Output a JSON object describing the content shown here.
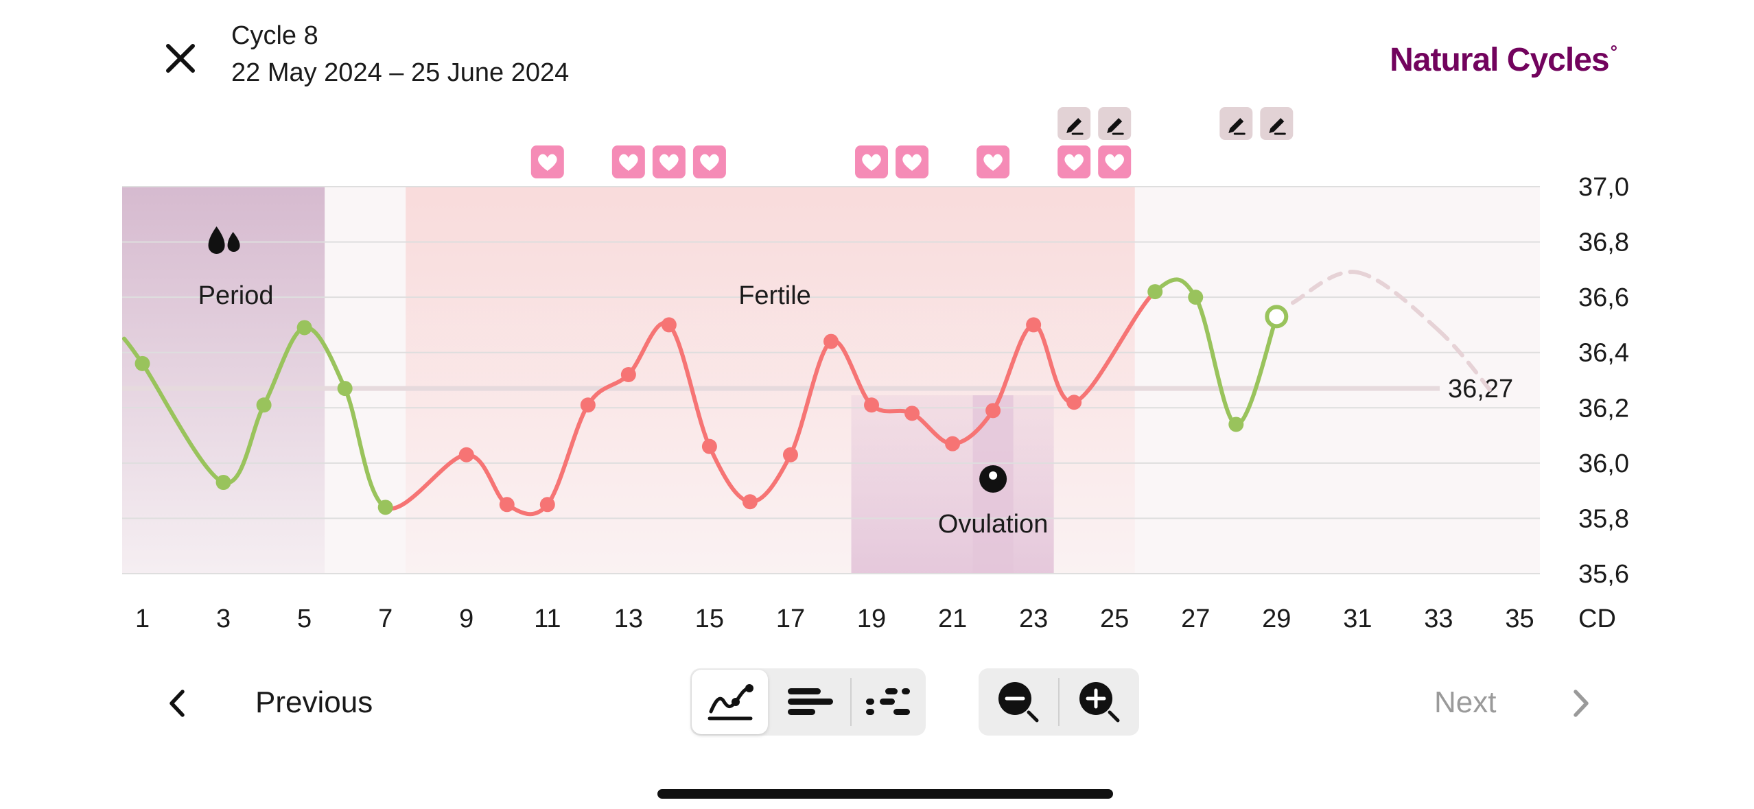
{
  "header": {
    "title": "Cycle 8",
    "dates": "22 May 2024 – 25 June 2024",
    "brand": "Natural Cycles",
    "brand_mark": "°"
  },
  "navigation": {
    "previous_label": "Previous",
    "next_label": "Next"
  },
  "toolbar": {
    "view_buttons": [
      "graph-view",
      "bar-view",
      "dots-view"
    ],
    "selected_view": "graph-view",
    "zoom_buttons": [
      "zoom-out",
      "zoom-in"
    ]
  },
  "chart_data": {
    "type": "line",
    "ylabel": "",
    "xlabel_unit": "CD",
    "ylim": [
      35.6,
      37.0
    ],
    "xlim": [
      0.5,
      35.5
    ],
    "y_ticks": [
      "35,6",
      "35,8",
      "36,0",
      "36,2",
      "36,4",
      "36,6",
      "36,8",
      "37,0"
    ],
    "x_ticks": [
      "1",
      "3",
      "5",
      "7",
      "9",
      "11",
      "13",
      "15",
      "17",
      "19",
      "21",
      "23",
      "25",
      "27",
      "29",
      "31",
      "33",
      "35"
    ],
    "cover_line": {
      "value": 36.27,
      "label": "36,27"
    },
    "series": [
      {
        "points": [
          {
            "cd": 1,
            "temp": 36.36,
            "phase": "green"
          },
          {
            "cd": 3,
            "temp": 35.93,
            "phase": "green"
          },
          {
            "cd": 4,
            "temp": 36.21,
            "phase": "green"
          },
          {
            "cd": 5,
            "temp": 36.49,
            "phase": "green"
          },
          {
            "cd": 6,
            "temp": 36.27,
            "phase": "green"
          },
          {
            "cd": 7,
            "temp": 35.84,
            "phase": "green"
          },
          {
            "cd": 9,
            "temp": 36.03,
            "phase": "red"
          },
          {
            "cd": 10,
            "temp": 35.85,
            "phase": "red"
          },
          {
            "cd": 11,
            "temp": 35.85,
            "phase": "red"
          },
          {
            "cd": 12,
            "temp": 36.21,
            "phase": "red"
          },
          {
            "cd": 13,
            "temp": 36.32,
            "phase": "red"
          },
          {
            "cd": 14,
            "temp": 36.5,
            "phase": "red"
          },
          {
            "cd": 15,
            "temp": 36.06,
            "phase": "red"
          },
          {
            "cd": 16,
            "temp": 35.86,
            "phase": "red"
          },
          {
            "cd": 17,
            "temp": 36.03,
            "phase": "red"
          },
          {
            "cd": 18,
            "temp": 36.44,
            "phase": "red"
          },
          {
            "cd": 19,
            "temp": 36.21,
            "phase": "red"
          },
          {
            "cd": 20,
            "temp": 36.18,
            "phase": "red"
          },
          {
            "cd": 21,
            "temp": 36.07,
            "phase": "red"
          },
          {
            "cd": 22,
            "temp": 36.19,
            "phase": "red"
          },
          {
            "cd": 23,
            "temp": 36.5,
            "phase": "red"
          },
          {
            "cd": 24,
            "temp": 36.22,
            "phase": "red"
          },
          {
            "cd": 26,
            "temp": 36.62,
            "phase": "green"
          },
          {
            "cd": 27,
            "temp": 36.6,
            "phase": "green"
          },
          {
            "cd": 28,
            "temp": 36.14,
            "phase": "green"
          },
          {
            "cd": 29,
            "temp": 36.53,
            "phase": "open"
          }
        ],
        "lead_in": {
          "cd": 0.55,
          "temp": 36.45
        },
        "prediction": [
          {
            "cd": 29.4,
            "temp": 36.58
          },
          {
            "cd": 31,
            "temp": 36.69
          },
          {
            "cd": 33,
            "temp": 36.48
          },
          {
            "cd": 34.4,
            "temp": 36.24
          }
        ]
      }
    ],
    "bands": [
      {
        "label": "Period",
        "from_cd": 0.5,
        "to_cd": 5.5,
        "kind": "period",
        "icon": "drops-icon"
      },
      {
        "label": "Fertile",
        "from_cd": 7.5,
        "to_cd": 25.5,
        "kind": "fertile"
      },
      {
        "label": "Ovulation",
        "from_cd": 18.5,
        "to_cd": 23.5,
        "kind": "ovulation",
        "icon": "ovulation-dot-icon"
      }
    ],
    "heart_markers": [
      11,
      13,
      14,
      15,
      19,
      20,
      22,
      24,
      25
    ],
    "test_markers": [
      24,
      25,
      28,
      29
    ],
    "colors": {
      "green": "#99c35c",
      "red": "#f67474",
      "period": "#d4b7cd",
      "fertile": "#f9dada",
      "ovulation": "#e4c6da",
      "heart": "#f58bb6",
      "test": "#e2d2d5",
      "brand": "#72035d"
    }
  }
}
